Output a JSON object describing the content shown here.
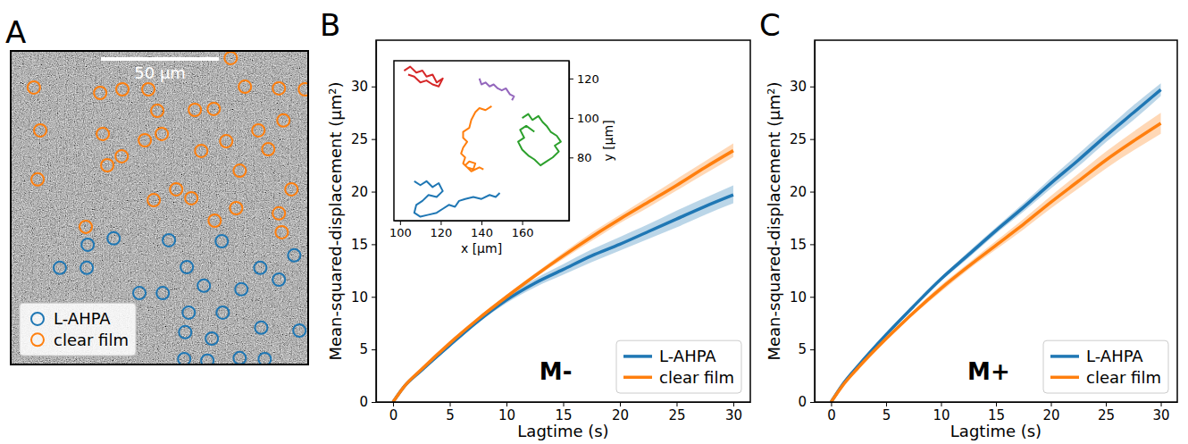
{
  "chart_data": [
    {
      "type": "scatter",
      "panel": "A",
      "tick_labels": false,
      "legend": "lower left",
      "xlim": [
        0,
        126
      ],
      "ylim": [
        133,
        0
      ],
      "scale_bar": {
        "value": 50,
        "label": "50 µm"
      },
      "series": [
        {
          "name": "L-AHPA",
          "color": "#1f77b4",
          "marker": "circle",
          "x": [
            32.6,
            43.6,
            67.0,
            89.4,
            20.8,
            32.2,
            74.6,
            105.7,
            120.1,
            54.5,
            64.4,
            81.8,
            97.7,
            113.6,
            75.4,
            89.8,
            73.9,
            85.2,
            106.1,
            122.3,
            83.3,
            107.6,
            73.5,
            97.0
          ],
          "values": [
            82.2,
            79.5,
            80.3,
            80.7,
            92.0,
            92.0,
            91.7,
            92.0,
            86.7,
            102.7,
            102.7,
            99.6,
            101.1,
            97.0,
            111.0,
            111.0,
            119.3,
            122.0,
            117.4,
            118.6,
            131.4,
            130.7,
            130.7,
            130.3
          ]
        },
        {
          "name": "clear film",
          "color": "#ff7f0e",
          "marker": "circle",
          "x": [
            9.8,
            37.9,
            47.3,
            58.3,
            93.2,
            99.2,
            113.6,
            124.6,
            62.1,
            78.0,
            86.0,
            115.5,
            12.5,
            39.0,
            56.8,
            64.0,
            104.9,
            91.3,
            47.0,
            40.9,
            80.7,
            109.1,
            11.4,
            97.0,
            70.1,
            60.6,
            76.5,
            118.9,
            95.5,
            113.6,
            86.4,
            31.8,
            114.8
          ],
          "values": [
            15.5,
            17.8,
            16.3,
            16.3,
            3.0,
            15.2,
            15.9,
            16.3,
            25.4,
            25.0,
            24.6,
            29.5,
            33.7,
            35.2,
            37.9,
            35.2,
            33.7,
            38.3,
            44.7,
            48.5,
            42.4,
            41.7,
            54.5,
            50.8,
            58.7,
            63.3,
            62.5,
            58.7,
            66.7,
            68.9,
            72.0,
            74.6,
            76.9
          ]
        }
      ]
    },
    {
      "type": "line",
      "panel": "B",
      "annotation": "M-",
      "legend": "lower right",
      "grid": false,
      "xlabel": "Lagtime (s)",
      "ylabel": "Mean-squared-displacement (µm²)",
      "xlim": [
        -1.5,
        31.5
      ],
      "ylim": [
        0,
        34.4
      ],
      "xticks": [
        0,
        5,
        10,
        15,
        20,
        25,
        30
      ],
      "yticks": [
        0,
        5,
        10,
        15,
        20,
        25,
        30
      ],
      "x": [
        0,
        1,
        2.5,
        5,
        7.5,
        10,
        12.5,
        15,
        17.5,
        20,
        22.5,
        25,
        27.5,
        30
      ],
      "series": [
        {
          "name": "L-AHPA",
          "color": "#1f77b4",
          "values": [
            0,
            1.5,
            3.0,
            5.4,
            7.7,
            9.7,
            11.3,
            12.6,
            13.9,
            15.0,
            16.2,
            17.4,
            18.6,
            19.7
          ],
          "lower": [
            0,
            1.4,
            2.9,
            5.2,
            7.5,
            9.4,
            10.9,
            12.1,
            13.3,
            14.4,
            15.5,
            16.6,
            17.8,
            18.9
          ],
          "upper": [
            0,
            1.6,
            3.1,
            5.6,
            7.9,
            10.0,
            11.7,
            13.1,
            14.5,
            15.7,
            16.9,
            18.2,
            19.4,
            20.6
          ]
        },
        {
          "name": "clear film",
          "color": "#ff7f0e",
          "values": [
            0,
            1.5,
            3.1,
            5.6,
            7.9,
            10.0,
            12.0,
            13.9,
            15.7,
            17.4,
            19.0,
            20.6,
            22.3,
            23.9
          ],
          "lower": [
            0,
            1.4,
            3.0,
            5.5,
            7.8,
            9.8,
            11.8,
            13.6,
            15.3,
            17.0,
            18.5,
            20.1,
            21.7,
            23.3
          ],
          "upper": [
            0,
            1.6,
            3.2,
            5.7,
            8.0,
            10.2,
            12.2,
            14.2,
            16.1,
            17.8,
            19.5,
            21.2,
            22.9,
            24.6
          ]
        }
      ]
    },
    {
      "type": "line",
      "xlabel": "x [µm]",
      "ylabel": "y [µm]",
      "grid": false,
      "xlim": [
        97,
        183
      ],
      "ylim": [
        48,
        129
      ],
      "xticks": [
        100,
        120,
        140,
        160
      ],
      "yticks": [
        80,
        100,
        120
      ],
      "series": [
        {
          "color": "#d62728",
          "x": [
            102,
            105,
            108,
            111,
            113,
            116,
            118,
            121,
            119,
            116,
            113,
            110,
            107,
            104
          ],
          "values": [
            124,
            126,
            123,
            124,
            121,
            122,
            118,
            120,
            116,
            117,
            119,
            118,
            121,
            122
          ]
        },
        {
          "color": "#9467bd",
          "x": [
            139,
            140,
            142,
            144,
            146,
            148,
            150,
            152,
            154,
            156,
            155
          ],
          "values": [
            120,
            117,
            118,
            116,
            117,
            115,
            114,
            115,
            112,
            111,
            109
          ]
        },
        {
          "color": "#ff7f0e",
          "x": [
            145,
            142,
            139,
            137,
            135,
            134,
            131,
            131,
            133,
            131,
            130,
            132,
            131,
            133,
            136,
            137,
            134,
            132,
            135,
            139,
            141
          ],
          "values": [
            106,
            104,
            105,
            103,
            99,
            95,
            93,
            90,
            88,
            85,
            82,
            80,
            77,
            75,
            74,
            77,
            78,
            76,
            73,
            75,
            74
          ]
        },
        {
          "color": "#2ca02c",
          "x": [
            160,
            163,
            165,
            168,
            170,
            172,
            174,
            177,
            179,
            176,
            178,
            175,
            172,
            169,
            166,
            163,
            160,
            158,
            161,
            159,
            162,
            166
          ],
          "values": [
            100,
            102,
            99,
            101,
            98,
            96,
            93,
            91,
            88,
            86,
            83,
            80,
            78,
            76,
            79,
            81,
            84,
            88,
            90,
            94,
            96,
            93
          ]
        },
        {
          "color": "#1f77b4",
          "x": [
            107,
            110,
            113,
            116,
            119,
            121,
            118,
            114,
            111,
            108,
            107,
            110,
            114,
            118,
            121,
            124,
            127,
            129,
            132,
            136,
            140,
            144,
            147,
            149
          ],
          "values": [
            68,
            66,
            68,
            65,
            67,
            63,
            60,
            61,
            58,
            56,
            52,
            50,
            51,
            52,
            54,
            56,
            55,
            58,
            59,
            60,
            59,
            61,
            60,
            62
          ]
        }
      ]
    },
    {
      "type": "line",
      "panel": "C",
      "annotation": "M+",
      "legend": "lower right",
      "grid": false,
      "xlabel": "Lagtime (s)",
      "ylabel": "Mean-squared-displacement (µm²)",
      "xlim": [
        -1.5,
        31.5
      ],
      "ylim": [
        0,
        34.4
      ],
      "xticks": [
        0,
        5,
        10,
        15,
        20,
        25,
        30
      ],
      "yticks": [
        0,
        5,
        10,
        15,
        20,
        25,
        30
      ],
      "x": [
        0,
        1,
        2.5,
        5,
        7.5,
        10,
        12.5,
        15,
        17.5,
        20,
        22.5,
        25,
        27.5,
        30
      ],
      "series": [
        {
          "name": "L-AHPA",
          "color": "#1f77b4",
          "values": [
            0,
            1.6,
            3.5,
            6.4,
            9.1,
            11.7,
            14.0,
            16.3,
            18.5,
            20.8,
            23.0,
            25.3,
            27.5,
            29.7
          ],
          "lower": [
            0,
            1.5,
            3.4,
            6.3,
            8.9,
            11.5,
            13.7,
            16.0,
            18.1,
            20.3,
            22.4,
            24.7,
            26.8,
            29.1
          ],
          "upper": [
            0,
            1.7,
            3.6,
            6.5,
            9.3,
            11.9,
            14.3,
            16.6,
            18.9,
            21.3,
            23.6,
            25.9,
            28.2,
            30.3
          ]
        },
        {
          "name": "clear film",
          "color": "#ff7f0e",
          "values": [
            0,
            1.5,
            3.3,
            6.0,
            8.5,
            10.8,
            12.9,
            14.9,
            16.9,
            19.0,
            21.0,
            23.0,
            24.8,
            26.5
          ],
          "lower": [
            0,
            1.4,
            3.2,
            5.9,
            8.3,
            10.5,
            12.6,
            14.5,
            16.4,
            18.4,
            20.3,
            22.2,
            23.9,
            25.5
          ],
          "upper": [
            0,
            1.6,
            3.4,
            6.1,
            8.7,
            11.1,
            13.2,
            15.3,
            17.4,
            19.6,
            21.7,
            23.8,
            25.7,
            27.5
          ]
        }
      ]
    }
  ]
}
